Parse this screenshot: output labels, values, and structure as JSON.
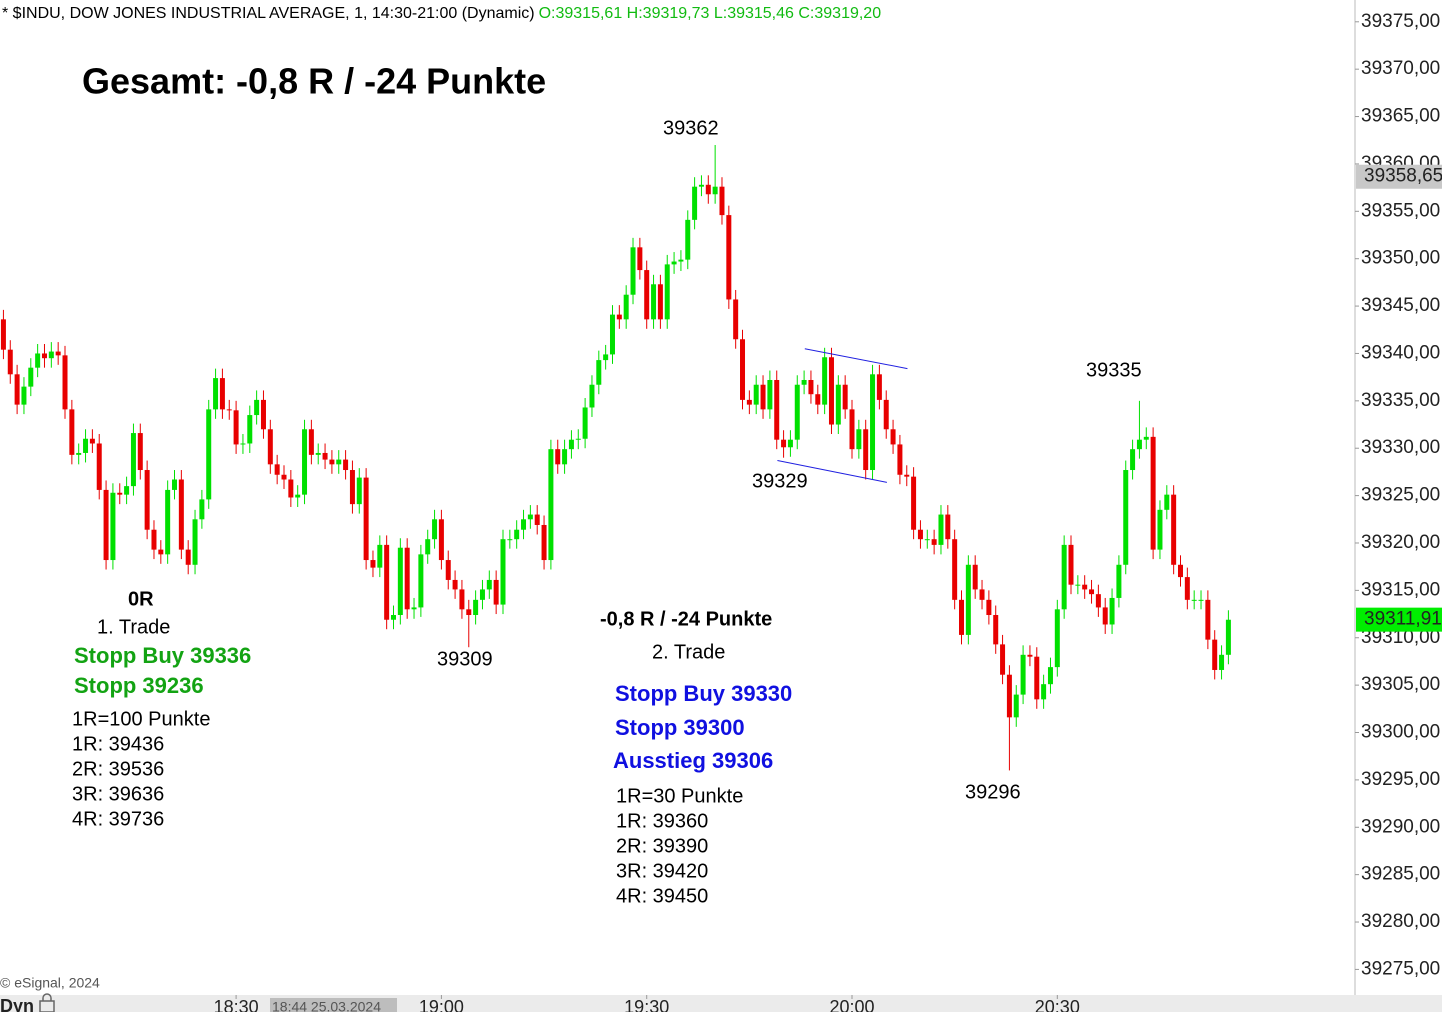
{
  "chart_data": {
    "type": "candlestick",
    "title": "* $INDU, DOW JONES INDUSTRIAL AVERAGE, 1, 14:30-21:00 (Dynamic)",
    "ohlc_text": "O:39315,61 H:39319,73 L:39315,46 C:39319,20",
    "up_color": "#00e000",
    "down_color": "#e80000",
    "open": [
      39343.6,
      39340.4,
      39337.8,
      39334.6,
      39336.5,
      39338.5,
      39340.0,
      39339.5,
      39340.2,
      39339.8,
      39334.1,
      39329.3,
      39329.5,
      39331.0,
      39330.5,
      39325.6,
      39318.2,
      39325.3,
      39325.1,
      39326.0,
      39331.6,
      39327.7,
      39321.4,
      39319.3,
      39318.8,
      39325.6,
      39326.7,
      39319.3,
      39317.7,
      39322.5,
      39324.6,
      39334.1,
      39337.4,
      39334.1,
      39334.0,
      39330.4,
      39330.5,
      39333.5,
      39335.1,
      39332.0,
      39328.3,
      39327.2,
      39326.7,
      39324.8,
      39325.1,
      39332.0,
      39329.3,
      39329.5,
      39328.8,
      39328.3,
      39328.8,
      39327.7,
      39324.1,
      39326.9,
      39318.2,
      39317.4,
      39319.8,
      39311.9,
      39312.4,
      39319.5,
      39313.0,
      39313.2,
      39318.8,
      39320.4,
      39322.5,
      39318.2,
      39316.1,
      39315.1,
      39313.0,
      39312.4,
      39314.0,
      39315.1,
      39316.1,
      39313.5,
      39320.4,
      39320.4,
      39321.4,
      39322.5,
      39323.0,
      39321.9,
      39318.2,
      39329.9,
      39328.3,
      39329.9,
      39330.9,
      39331.0,
      39334.3,
      39336.7,
      39339.3,
      39339.9,
      39344.1,
      39343.6,
      39346.2,
      39351.2,
      39348.8,
      39343.6,
      39347.3,
      39343.6,
      39349.4,
      39349.7,
      39349.9,
      39354.1,
      39357.6,
      39357.8,
      39356.8,
      39357.6,
      39354.6,
      39345.7,
      39341.5,
      39335.1,
      39334.6,
      39336.7,
      39334.1,
      39337.2,
      39330.9,
      39330.1,
      39330.9,
      39336.7,
      39337.2,
      39335.7,
      39334.6,
      39339.6,
      39332.5,
      39336.7,
      39334.1,
      39329.9,
      39332.0,
      39327.7,
      39337.8,
      39335.1,
      39332.0,
      39330.4,
      39327.2,
      39327.0,
      39321.4,
      39320.4,
      39320.4,
      39319.8,
      39323.0,
      39320.4,
      39314.0,
      39310.3,
      39317.7,
      39315.1,
      39314.0,
      39312.4,
      39309.3,
      39306.1,
      39301.6,
      39304.0,
      39308.2,
      39308.0,
      39303.5,
      39305.1,
      39306.9,
      39313.0,
      39319.8,
      39315.6,
      39315.6,
      39315.1,
      39314.6,
      39313.2,
      39311.4,
      39314.2,
      39317.7,
      39327.7,
      39329.9,
      39330.9,
      39331.2,
      39319.3,
      39323.5,
      39325.1,
      39317.7,
      39316.4,
      39314.0,
      39314.0,
      39314.0,
      39309.8,
      39306.6,
      39308.2
    ],
    "high": [
      39344.6,
      39341.4,
      39338.8,
      39337.5,
      39339.5,
      39341.0,
      39341.0,
      39341.2,
      39341.2,
      39340.8,
      39335.1,
      39330.5,
      39332.0,
      39332.0,
      39331.5,
      39326.6,
      39326.3,
      39326.3,
      39327.0,
      39332.6,
      39332.6,
      39328.7,
      39322.4,
      39320.3,
      39326.6,
      39327.7,
      39327.7,
      39320.3,
      39323.5,
      39325.6,
      39335.1,
      39338.4,
      39338.4,
      39335.1,
      39335.0,
      39331.5,
      39334.5,
      39336.1,
      39336.1,
      39333.0,
      39329.3,
      39328.2,
      39327.7,
      39326.1,
      39333.0,
      39333.0,
      39330.5,
      39330.5,
      39329.8,
      39329.8,
      39329.8,
      39328.7,
      39327.9,
      39327.9,
      39319.2,
      39320.8,
      39320.8,
      39313.4,
      39320.5,
      39320.5,
      39314.2,
      39319.8,
      39321.4,
      39323.5,
      39323.5,
      39319.2,
      39317.1,
      39316.1,
      39314.0,
      39315.0,
      39316.1,
      39317.1,
      39317.1,
      39321.4,
      39321.4,
      39322.4,
      39323.5,
      39324.0,
      39324.0,
      39322.9,
      39330.9,
      39330.9,
      39330.9,
      39331.9,
      39332.0,
      39335.3,
      39337.7,
      39340.3,
      39340.9,
      39345.1,
      39345.1,
      39347.2,
      39352.2,
      39352.2,
      39349.8,
      39348.3,
      39348.3,
      39350.4,
      39350.7,
      39350.9,
      39355.1,
      39358.6,
      39358.8,
      39358.8,
      39362.0,
      39358.6,
      39355.6,
      39346.7,
      39342.5,
      39336.1,
      39337.7,
      39337.7,
      39338.2,
      39338.2,
      39331.9,
      39331.9,
      39337.7,
      39338.2,
      39338.2,
      39336.7,
      39340.6,
      39340.6,
      39337.7,
      39337.7,
      39335.1,
      39333.0,
      39333.0,
      39338.8,
      39338.8,
      39336.1,
      39333.0,
      39331.4,
      39328.2,
      39328.0,
      39322.4,
      39321.4,
      39321.4,
      39324.0,
      39324.0,
      39321.4,
      39315.0,
      39318.7,
      39318.7,
      39316.1,
      39315.0,
      39313.4,
      39310.3,
      39307.1,
      39305.0,
      39309.2,
      39309.2,
      39309.0,
      39306.1,
      39307.9,
      39314.0,
      39320.8,
      39320.8,
      39316.6,
      39316.6,
      39316.1,
      39315.6,
      39314.2,
      39315.2,
      39318.7,
      39328.7,
      39330.9,
      39335.0,
      39332.2,
      39332.2,
      39324.5,
      39326.1,
      39326.1,
      39318.7,
      39317.4,
      39315.0,
      39315.0,
      39315.0,
      39310.8,
      39309.2,
      39312.9
    ],
    "low": [
      39339.4,
      39336.8,
      39333.6,
      39333.6,
      39335.5,
      39337.5,
      39338.5,
      39338.5,
      39338.8,
      39333.1,
      39328.3,
      39328.3,
      39328.5,
      39329.5,
      39324.6,
      39317.2,
      39317.2,
      39324.1,
      39324.1,
      39325.0,
      39326.7,
      39320.4,
      39318.3,
      39317.8,
      39317.8,
      39324.6,
      39318.3,
      39316.7,
      39316.7,
      39321.5,
      39323.6,
      39333.1,
      39333.1,
      39333.0,
      39329.4,
      39329.4,
      39329.5,
      39332.5,
      39331.0,
      39327.3,
      39326.2,
      39325.7,
      39323.8,
      39323.8,
      39324.1,
      39328.3,
      39328.3,
      39327.8,
      39327.3,
      39327.3,
      39326.7,
      39323.1,
      39323.1,
      39317.2,
      39316.4,
      39316.4,
      39310.9,
      39310.9,
      39311.4,
      39312.0,
      39312.0,
      39312.2,
      39317.8,
      39319.4,
      39317.2,
      39315.1,
      39314.1,
      39312.0,
      39309.0,
      39311.4,
      39313.0,
      39314.1,
      39312.5,
      39312.5,
      39319.4,
      39319.4,
      39320.4,
      39321.5,
      39320.9,
      39317.2,
      39317.2,
      39327.3,
      39327.3,
      39328.9,
      39329.9,
      39330.0,
      39333.3,
      39335.7,
      39338.3,
      39338.9,
      39342.6,
      39342.6,
      39345.2,
      39347.8,
      39342.6,
      39342.6,
      39342.6,
      39342.6,
      39348.4,
      39348.7,
      39348.9,
      39353.1,
      39356.6,
      39355.8,
      39355.8,
      39353.6,
      39344.7,
      39340.5,
      39334.1,
      39333.6,
      39333.6,
      39333.1,
      39333.1,
      39329.9,
      39329.0,
      39329.1,
      39329.9,
      39335.7,
      39334.7,
      39333.6,
      39333.6,
      39331.5,
      39331.5,
      39333.1,
      39328.9,
      39328.9,
      39326.7,
      39326.7,
      39334.1,
      39331.0,
      39329.4,
      39326.2,
      39326.0,
      39320.4,
      39319.4,
      39319.4,
      39318.8,
      39318.8,
      39319.4,
      39313.0,
      39309.3,
      39309.3,
      39314.1,
      39313.0,
      39311.4,
      39308.3,
      39305.1,
      39296.0,
      39300.6,
      39303.0,
      39307.0,
      39302.5,
      39302.5,
      39304.1,
      39305.9,
      39312.0,
      39314.6,
      39314.6,
      39314.1,
      39313.6,
      39312.2,
      39310.4,
      39310.4,
      39313.2,
      39316.7,
      39326.7,
      39328.9,
      39329.9,
      39318.3,
      39318.3,
      39322.5,
      39316.7,
      39315.4,
      39313.0,
      39313.0,
      39313.0,
      39308.8,
      39305.6,
      39305.6,
      39307.2
    ],
    "close": [
      39340.4,
      39337.8,
      39334.6,
      39336.5,
      39338.5,
      39340.0,
      39339.5,
      39340.2,
      39339.8,
      39334.1,
      39329.3,
      39329.5,
      39331.0,
      39330.5,
      39325.6,
      39318.2,
      39325.3,
      39325.1,
      39326.0,
      39331.6,
      39327.7,
      39321.4,
      39319.3,
      39318.8,
      39325.6,
      39326.7,
      39319.3,
      39317.7,
      39322.5,
      39324.6,
      39334.1,
      39337.4,
      39334.1,
      39334.0,
      39330.4,
      39330.5,
      39333.5,
      39335.1,
      39332.0,
      39328.3,
      39327.2,
      39326.7,
      39324.8,
      39325.1,
      39332.0,
      39329.3,
      39329.5,
      39328.8,
      39328.3,
      39328.8,
      39327.7,
      39324.1,
      39326.9,
      39318.2,
      39317.4,
      39319.8,
      39311.9,
      39312.4,
      39319.5,
      39313.0,
      39313.2,
      39318.8,
      39320.4,
      39322.5,
      39318.2,
      39316.1,
      39315.1,
      39313.0,
      39312.4,
      39314.0,
      39315.1,
      39316.1,
      39313.5,
      39320.4,
      39320.4,
      39321.4,
      39322.5,
      39323.0,
      39321.9,
      39318.2,
      39329.9,
      39328.3,
      39329.9,
      39330.9,
      39331.0,
      39334.3,
      39336.7,
      39339.3,
      39339.9,
      39344.1,
      39343.6,
      39346.2,
      39351.2,
      39348.8,
      39343.6,
      39347.3,
      39343.6,
      39349.4,
      39349.7,
      39349.9,
      39354.1,
      39357.6,
      39357.8,
      39356.8,
      39357.6,
      39354.6,
      39345.7,
      39341.5,
      39335.1,
      39334.6,
      39336.7,
      39334.1,
      39337.2,
      39330.9,
      39330.1,
      39330.9,
      39336.7,
      39337.2,
      39335.7,
      39334.6,
      39339.6,
      39332.5,
      39336.7,
      39334.1,
      39329.9,
      39332.0,
      39327.7,
      39337.8,
      39335.1,
      39332.0,
      39330.4,
      39327.2,
      39327.0,
      39321.4,
      39320.4,
      39320.4,
      39319.8,
      39323.0,
      39320.4,
      39314.0,
      39310.3,
      39317.7,
      39315.1,
      39314.0,
      39312.4,
      39309.3,
      39306.1,
      39301.6,
      39304.0,
      39308.2,
      39308.0,
      39303.5,
      39305.1,
      39306.9,
      39313.0,
      39319.8,
      39315.6,
      39315.6,
      39315.1,
      39314.6,
      39313.2,
      39311.4,
      39314.2,
      39317.7,
      39327.7,
      39329.9,
      39330.9,
      39331.2,
      39319.3,
      39323.5,
      39325.1,
      39317.7,
      39316.4,
      39314.0,
      39314.0,
      39314.0,
      39309.8,
      39306.6,
      39308.2,
      39311.9
    ],
    "xlim": [
      -0.5,
      197.5
    ],
    "xticks": [
      {
        "value": 34,
        "label": "18:30"
      },
      {
        "value": 64,
        "label": "19:00"
      },
      {
        "value": 94,
        "label": "19:30"
      },
      {
        "value": 124,
        "label": "20:00"
      },
      {
        "value": 154,
        "label": "20:30"
      }
    ],
    "cursor_label": "18:44 25.03.2024",
    "ylim": [
      39272.3,
      39377.3
    ],
    "yticks": [
      {
        "value": 39275,
        "label": "39275,00"
      },
      {
        "value": 39280,
        "label": "39280,00"
      },
      {
        "value": 39285,
        "label": "39285,00"
      },
      {
        "value": 39290,
        "label": "39290,00"
      },
      {
        "value": 39295,
        "label": "39295,00"
      },
      {
        "value": 39300,
        "label": "39300,00"
      },
      {
        "value": 39305,
        "label": "39305,00"
      },
      {
        "value": 39310,
        "label": "39310,00"
      },
      {
        "value": 39315,
        "label": "39315,00"
      },
      {
        "value": 39320,
        "label": "39320,00"
      },
      {
        "value": 39325,
        "label": "39325,00"
      },
      {
        "value": 39330,
        "label": "39330,00"
      },
      {
        "value": 39335,
        "label": "39335,00"
      },
      {
        "value": 39340,
        "label": "39340,00"
      },
      {
        "value": 39345,
        "label": "39345,00"
      },
      {
        "value": 39350,
        "label": "39350,00"
      },
      {
        "value": 39355,
        "label": "39355,00"
      },
      {
        "value": 39360,
        "label": "39360,00"
      },
      {
        "value": 39365,
        "label": "39365,00"
      },
      {
        "value": 39370,
        "label": "39370,00"
      },
      {
        "value": 39375,
        "label": "39375,00"
      }
    ],
    "grid": false,
    "price_markers": [
      {
        "value": 39358.65,
        "label": "39358,65",
        "color": "#c8c8c8"
      },
      {
        "value": 39311.91,
        "label": "39311,91",
        "color": "#00ee00"
      }
    ],
    "trendlines": [
      {
        "x": [
          117.1,
          132.1
        ],
        "y": [
          39340.5,
          39338.4
        ],
        "color": "#2020e0"
      },
      {
        "x": [
          113.1,
          129.1
        ],
        "y": [
          39328.7,
          39326.4
        ],
        "color": "#2020e0"
      }
    ],
    "annotations": [
      "Gesamt: -0,8 R / -24 Punkte",
      "39362",
      "0R",
      "1. Trade",
      "Stopp Buy 39336",
      "Stopp 39236",
      "1R=100 Punkte",
      "1R: 39436",
      "2R: 39536",
      "3R: 39636",
      "4R: 39736",
      "39309",
      "-0,8 R / -24 Punkte",
      "2. Trade",
      "Stopp Buy 39330",
      "Stopp 39300",
      "Ausstieg 39306",
      "1R=30 Punkte",
      "1R: 39360",
      "2R: 39390",
      "3R: 39420",
      "4R: 39450",
      "39329",
      "39296",
      "39335"
    ],
    "source": "© eSignal, 2024",
    "mode_label": "Dyn"
  }
}
